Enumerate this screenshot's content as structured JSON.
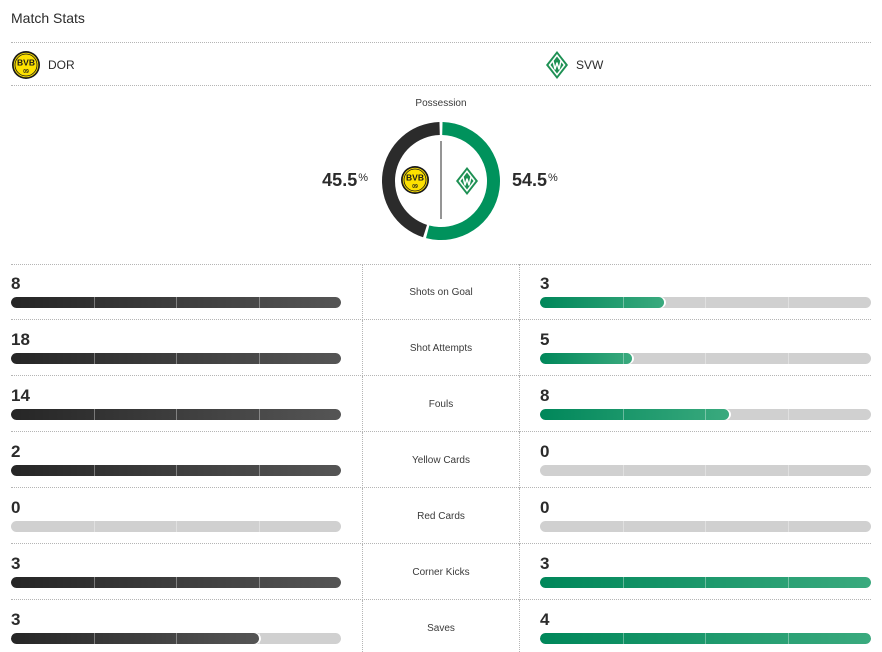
{
  "header": {
    "title": "Match Stats"
  },
  "teams": {
    "home": {
      "abbr": "DOR",
      "logo": "bvb-crest-icon",
      "color": "#2b2b2b"
    },
    "away": {
      "abbr": "SVW",
      "logo": "werder-crest-icon",
      "color": "#00875a"
    }
  },
  "possession": {
    "label": "Possession",
    "home_value": "45.5",
    "away_value": "54.5",
    "unit": "%"
  },
  "stats": [
    {
      "label": "Shots on Goal",
      "home": "8",
      "away": "3",
      "home_fill": 1.0,
      "away_fill": 0.375
    },
    {
      "label": "Shot Attempts",
      "home": "18",
      "away": "5",
      "home_fill": 1.0,
      "away_fill": 0.278
    },
    {
      "label": "Fouls",
      "home": "14",
      "away": "8",
      "home_fill": 1.0,
      "away_fill": 0.571
    },
    {
      "label": "Yellow Cards",
      "home": "2",
      "away": "0",
      "home_fill": 1.0,
      "away_fill": 0.0
    },
    {
      "label": "Red Cards",
      "home": "0",
      "away": "0",
      "home_fill": 0.0,
      "away_fill": 0.0
    },
    {
      "label": "Corner Kicks",
      "home": "3",
      "away": "3",
      "home_fill": 1.0,
      "away_fill": 1.0
    },
    {
      "label": "Saves",
      "home": "3",
      "away": "4",
      "home_fill": 0.75,
      "away_fill": 1.0
    }
  ]
}
